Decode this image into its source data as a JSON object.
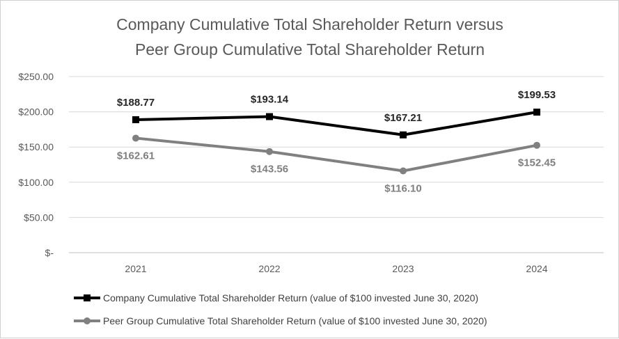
{
  "chart_data": {
    "type": "line",
    "title": [
      "Company Cumulative Total Shareholder Return versus",
      "Peer Group Cumulative Total Shareholder Return"
    ],
    "categories": [
      "2021",
      "2022",
      "2023",
      "2024"
    ],
    "ylim": [
      0,
      250
    ],
    "yticks": [
      {
        "value": 0,
        "label": "$-"
      },
      {
        "value": 50,
        "label": "$50.00"
      },
      {
        "value": 100,
        "label": "$100.00"
      },
      {
        "value": 150,
        "label": "$150.00"
      },
      {
        "value": 200,
        "label": "$200.00"
      },
      {
        "value": 250,
        "label": "$250.00"
      }
    ],
    "grid": true,
    "legend_position": "bottom",
    "series": [
      {
        "name": "Company Cumulative Total Shareholder Return (value of $100 invested June 30, 2020)",
        "values": [
          188.77,
          193.14,
          167.21,
          199.53
        ],
        "labels": [
          "$188.77",
          "$193.14",
          "$167.21",
          "$199.53"
        ],
        "color": "#000000",
        "marker": "square",
        "label_position": "above"
      },
      {
        "name": "Peer Group Cumulative Total Shareholder Return (value of $100 invested June 30, 2020)",
        "values": [
          162.61,
          143.56,
          116.1,
          152.45
        ],
        "labels": [
          "$162.61",
          "$143.56",
          "$116.10",
          "$152.45"
        ],
        "color": "#808080",
        "marker": "circle",
        "label_position": "below"
      }
    ]
  }
}
